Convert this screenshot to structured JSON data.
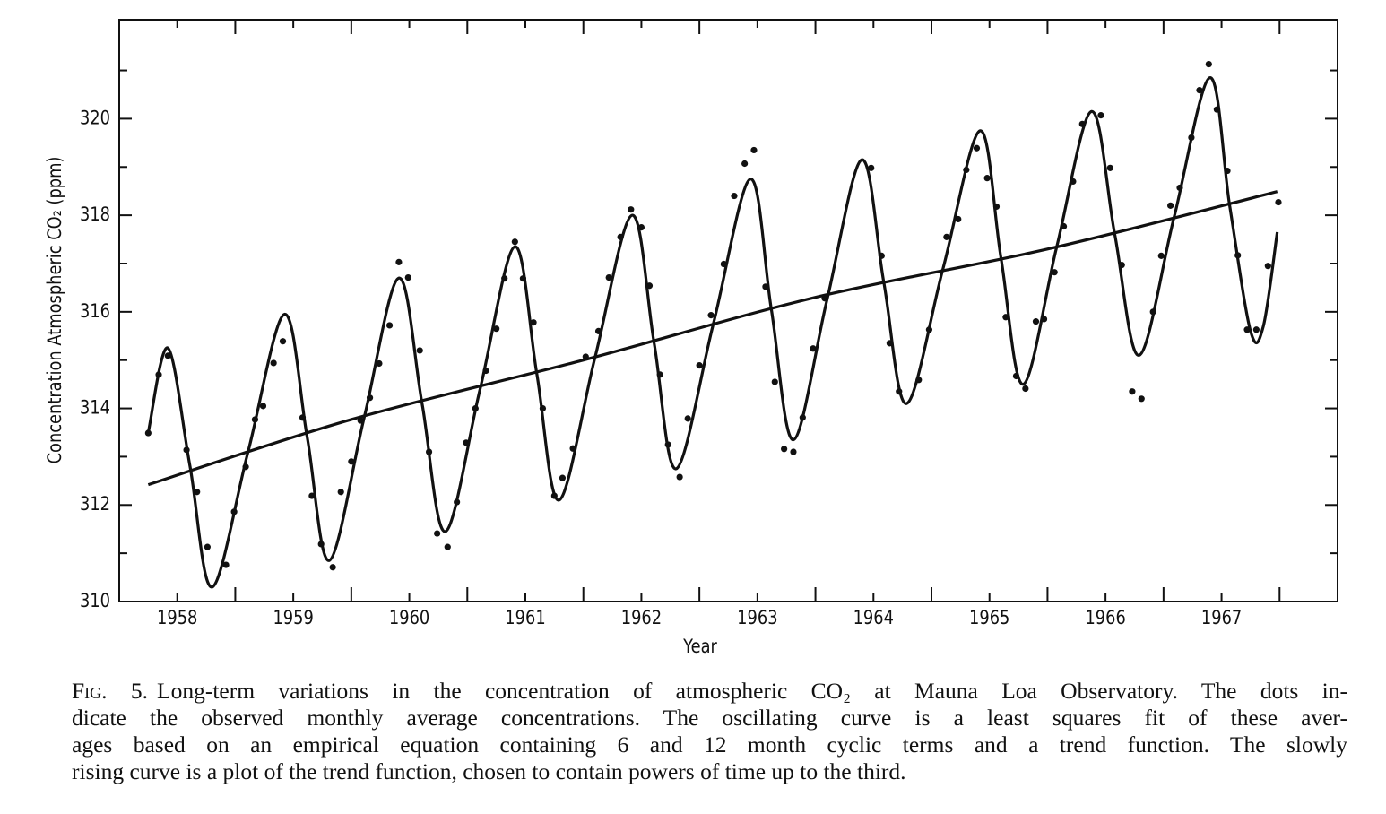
{
  "chart_data": {
    "type": "line",
    "xlabel": "Year",
    "ylabel": "Concentration  Atmospheric CO₂ (ppm)",
    "xlim": [
      1957.5,
      1968
    ],
    "ylim": [
      310,
      322.05
    ],
    "xticks": [
      1958,
      1959,
      1960,
      1961,
      1962,
      1963,
      1964,
      1965,
      1966,
      1967
    ],
    "xminorticks": [
      1958.5,
      1959.5,
      1960.5,
      1961.5,
      1962.5,
      1963.5,
      1964.5,
      1965.5,
      1966.5,
      1967.5
    ],
    "yticks": [
      310,
      312,
      314,
      316,
      318,
      320
    ],
    "yminorticks": [
      311,
      313,
      315,
      317,
      319,
      321
    ],
    "series": [
      {
        "style": "markers",
        "color": "#111111",
        "x": [
          1957.75,
          1957.84,
          1957.92,
          1958.08,
          1958.17,
          1958.26,
          1958.42,
          1958.49,
          1958.59,
          1958.67,
          1958.74,
          1958.83,
          1958.91,
          1959.08,
          1959.16,
          1959.24,
          1959.34,
          1959.41,
          1959.5,
          1959.58,
          1959.66,
          1959.74,
          1959.83,
          1959.91,
          1959.99,
          1960.09,
          1960.17,
          1960.24,
          1960.33,
          1960.41,
          1960.49,
          1960.57,
          1960.66,
          1960.75,
          1960.82,
          1960.91,
          1960.98,
          1961.07,
          1961.15,
          1961.25,
          1961.32,
          1961.41,
          1961.52,
          1961.63,
          1961.72,
          1961.82,
          1961.91,
          1962.0,
          1962.07,
          1962.16,
          1962.23,
          1962.33,
          1962.4,
          1962.5,
          1962.6,
          1962.71,
          1962.8,
          1962.89,
          1962.97,
          1963.07,
          1963.15,
          1963.23,
          1963.31,
          1963.39,
          1963.48,
          1963.58,
          1963.98,
          1964.07,
          1964.14,
          1964.22,
          1964.39,
          1964.48,
          1964.63,
          1964.73,
          1964.8,
          1964.89,
          1964.98,
          1965.06,
          1965.14,
          1965.23,
          1965.31,
          1965.4,
          1965.47,
          1965.56,
          1965.64,
          1965.72,
          1965.8,
          1965.96,
          1966.04,
          1966.14,
          1966.23,
          1966.31,
          1966.41,
          1966.48,
          1966.56,
          1966.64,
          1966.74,
          1966.81,
          1966.89,
          1966.96,
          1967.05,
          1967.14,
          1967.22,
          1967.3,
          1967.4,
          1967.49
        ],
        "values": [
          313.49,
          314.7,
          315.09,
          313.14,
          312.27,
          311.13,
          310.76,
          311.86,
          312.79,
          313.77,
          314.05,
          314.94,
          315.39,
          313.81,
          312.19,
          311.19,
          310.71,
          312.27,
          312.9,
          313.75,
          314.22,
          314.93,
          315.72,
          317.03,
          316.71,
          315.2,
          313.1,
          311.41,
          311.13,
          312.06,
          313.29,
          314.0,
          314.78,
          315.65,
          316.69,
          317.45,
          316.69,
          315.78,
          314.0,
          312.19,
          312.56,
          313.17,
          315.07,
          315.6,
          316.71,
          317.55,
          318.12,
          317.75,
          316.54,
          314.7,
          313.25,
          312.58,
          313.79,
          314.89,
          315.93,
          316.99,
          318.4,
          319.07,
          319.35,
          316.52,
          314.55,
          313.16,
          313.1,
          313.81,
          315.24,
          316.28,
          318.98,
          317.16,
          315.35,
          314.35,
          314.59,
          315.63,
          317.55,
          317.92,
          318.94,
          319.39,
          318.77,
          318.18,
          315.89,
          314.67,
          314.41,
          315.8,
          315.85,
          316.82,
          317.77,
          318.7,
          319.89,
          320.07,
          318.98,
          316.97,
          314.35,
          314.2,
          316.0,
          317.16,
          318.2,
          318.57,
          319.61,
          320.59,
          321.13,
          320.19,
          318.92,
          317.17,
          315.63,
          315.63,
          316.95,
          318.27
        ]
      },
      {
        "style": "line",
        "color": "#111111",
        "x": [
          1957.75,
          1957.92,
          1958.11,
          1958.3,
          1958.61,
          1958.925,
          1959.12,
          1959.31,
          1959.61,
          1959.91,
          1960.11,
          1960.31,
          1960.61,
          1960.91,
          1961.1,
          1961.29,
          1961.6,
          1961.92,
          1962.11,
          1962.3,
          1962.62,
          1962.94,
          1963.12,
          1963.31,
          1963.6,
          1963.9,
          1964.09,
          1964.285,
          1964.6,
          1964.92,
          1965.1,
          1965.29,
          1965.58,
          1965.88,
          1966.08,
          1966.29,
          1966.59,
          1966.9,
          1967.07,
          1967.25,
          1967.36,
          1967.48
        ],
        "values": [
          313.5,
          315.25,
          312.8,
          310.3,
          313.1,
          315.95,
          313.4,
          310.85,
          313.8,
          316.7,
          314.1,
          311.45,
          314.4,
          317.35,
          314.7,
          312.1,
          315.05,
          318.0,
          315.35,
          312.75,
          315.75,
          318.75,
          316.05,
          313.35,
          316.25,
          319.15,
          316.6,
          314.1,
          316.9,
          319.75,
          317.1,
          314.5,
          317.35,
          320.15,
          317.6,
          315.1,
          317.95,
          320.85,
          318.2,
          315.6,
          315.7,
          317.65
        ]
      },
      {
        "style": "line",
        "color": "#111111",
        "x": [
          1957.75,
          1959.5,
          1961.5,
          1963.5,
          1965.5,
          1967.48
        ],
        "values": [
          312.42,
          313.77,
          315.0,
          316.3,
          317.3,
          318.49
        ]
      }
    ],
    "caption_label": "Fig. 5.",
    "caption_lines": [
      "Long-term variations in the concentration of atmospheric CO₂ at Mauna Loa Observatory.  The dots in-",
      "dicate the observed monthly average concentrations.  The oscillating curve is a least squares fit of these aver-",
      "ages based on an empirical equation containing 6 and 12 month cyclic terms and a trend function.  The slowly",
      "rising curve is a plot of the trend function, chosen to contain powers of time up to the third."
    ]
  }
}
